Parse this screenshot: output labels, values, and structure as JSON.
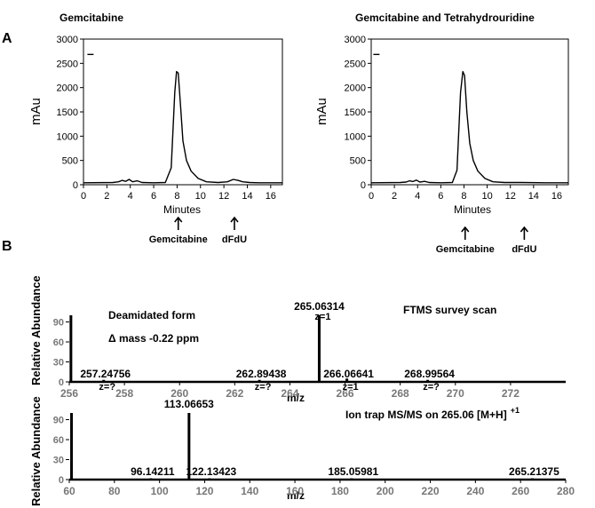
{
  "panel_a": {
    "letter": "A",
    "ylabel": "mAu",
    "xlabel": "Minutes",
    "left_title": "Gemcitabine",
    "right_title": "Gemcitabine and Tetrahydrouridine",
    "legend_mark": "–",
    "annotations": [
      "Gemcitabine",
      "dFdU"
    ]
  },
  "panel_b": {
    "letter": "B",
    "ylabel": "Relative Abundance",
    "xlabel": "m/z",
    "top_label_form": "Deamidated form",
    "top_label_mass": "Δ mass -0.22 ppm",
    "top_label_scan": "FTMS survey scan",
    "bottom_label_scan": "Ion trap MS/MS on 265.06 [M+H]",
    "bottom_label_sup": "+1"
  },
  "chart_data": [
    {
      "id": "hplc-left",
      "type": "line",
      "title": "Gemcitabine",
      "xlabel": "Minutes",
      "ylabel": "mAu",
      "xlim": [
        0,
        17
      ],
      "ylim": [
        0,
        3000
      ],
      "xticks": [
        0,
        2,
        4,
        6,
        8,
        10,
        12,
        14,
        16
      ],
      "yticks": [
        0,
        500,
        1000,
        1500,
        2000,
        2500,
        3000
      ],
      "x": [
        0,
        2.5,
        3.0,
        3.3,
        3.6,
        3.9,
        4.2,
        4.6,
        5.0,
        6.0,
        7.0,
        7.5,
        7.8,
        7.95,
        8.1,
        8.3,
        8.5,
        8.8,
        9.2,
        9.8,
        10.5,
        11.5,
        12.3,
        12.8,
        13.2,
        13.6,
        14.2,
        15,
        17
      ],
      "y": [
        40,
        45,
        60,
        90,
        70,
        110,
        60,
        80,
        45,
        40,
        45,
        350,
        1900,
        2330,
        2300,
        1600,
        900,
        500,
        280,
        130,
        60,
        45,
        60,
        110,
        90,
        60,
        45,
        40,
        40
      ],
      "annotations": [
        {
          "label": "Gemcitabine",
          "x": 8.1
        },
        {
          "label": "dFdU",
          "x": 12.9
        }
      ]
    },
    {
      "id": "hplc-right",
      "type": "line",
      "title": "Gemcitabine and Tetrahydrouridine",
      "xlabel": "Minutes",
      "ylabel": "mAu",
      "xlim": [
        0,
        17
      ],
      "ylim": [
        0,
        3000
      ],
      "xticks": [
        0,
        2,
        4,
        6,
        8,
        10,
        12,
        14,
        16
      ],
      "yticks": [
        0,
        500,
        1000,
        1500,
        2000,
        2500,
        3000
      ],
      "x": [
        0,
        2.5,
        3.0,
        3.3,
        3.6,
        3.9,
        4.2,
        4.6,
        5.0,
        6.0,
        7.0,
        7.4,
        7.7,
        7.9,
        8.05,
        8.25,
        8.5,
        8.8,
        9.2,
        9.8,
        10.5,
        11.5,
        13,
        15,
        17
      ],
      "y": [
        40,
        45,
        55,
        80,
        65,
        95,
        55,
        70,
        45,
        40,
        45,
        300,
        1900,
        2330,
        2250,
        1500,
        850,
        500,
        280,
        130,
        60,
        45,
        45,
        40,
        40
      ],
      "annotations": [
        {
          "label": "Gemcitabine",
          "x": 8.1
        },
        {
          "label": "dFdU",
          "x": 13.2
        }
      ]
    },
    {
      "id": "ms-survey",
      "type": "bar",
      "title": "FTMS survey scan",
      "xlabel": "m/z",
      "ylabel": "Relative Abundance",
      "xlim": [
        256,
        274
      ],
      "ylim": [
        0,
        100
      ],
      "xticks": [
        256,
        258,
        260,
        262,
        264,
        266,
        268,
        270,
        272
      ],
      "yticks": [
        0,
        30,
        60,
        90
      ],
      "peaks": [
        {
          "mz": 256.06,
          "intensity": 100,
          "label": "",
          "charge": ""
        },
        {
          "mz": 257.24756,
          "intensity": 3,
          "label": "257.24756",
          "charge": "z=?"
        },
        {
          "mz": 262.89438,
          "intensity": 3,
          "label": "262.89438",
          "charge": "z=?"
        },
        {
          "mz": 265.06314,
          "intensity": 100,
          "label": "265.06314",
          "charge": "z=1"
        },
        {
          "mz": 266.06641,
          "intensity": 5,
          "label": "266.06641",
          "charge": "z=1"
        },
        {
          "mz": 268.99564,
          "intensity": 3,
          "label": "268.99564",
          "charge": "z=?"
        }
      ]
    },
    {
      "id": "ms-msms",
      "type": "bar",
      "title": "Ion trap MS/MS on 265.06 [M+H] +1",
      "xlabel": "m/z",
      "ylabel": "Relative Abundance",
      "xlim": [
        60,
        280
      ],
      "ylim": [
        0,
        100
      ],
      "xticks": [
        60,
        80,
        100,
        120,
        140,
        160,
        180,
        200,
        220,
        240,
        260,
        280
      ],
      "yticks": [
        0,
        30,
        60,
        90
      ],
      "peaks": [
        {
          "mz": 61,
          "intensity": 100,
          "label": ""
        },
        {
          "mz": 96.14211,
          "intensity": 2,
          "label": "96.14211"
        },
        {
          "mz": 113.06653,
          "intensity": 100,
          "label": "113.06653"
        },
        {
          "mz": 122.13423,
          "intensity": 2,
          "label": "122.13423"
        },
        {
          "mz": 185.05981,
          "intensity": 2,
          "label": "185.05981"
        },
        {
          "mz": 265.21375,
          "intensity": 2,
          "label": "265.21375"
        }
      ]
    }
  ]
}
